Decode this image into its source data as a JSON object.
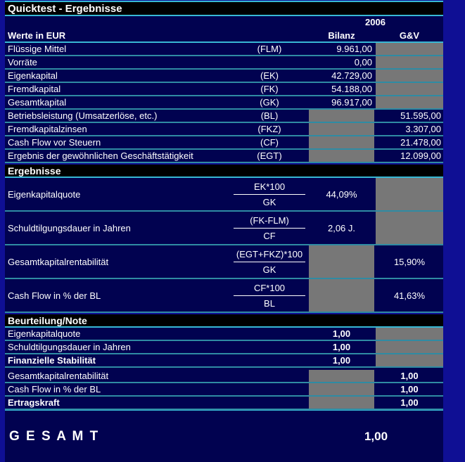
{
  "title": "Quicktest - Ergebnisse",
  "header": {
    "year": "2006",
    "unit_label": "Werte in EUR",
    "col_bilanz": "Bilanz",
    "col_guv": "G&V"
  },
  "values": {
    "rows": [
      {
        "label": "Flüssige Mittel",
        "code": "(FLM)",
        "bilanz": "9.961,00"
      },
      {
        "label": "Vorräte",
        "code": "",
        "bilanz": "0,00"
      },
      {
        "label": "Eigenkapital",
        "code": "(EK)",
        "bilanz": "42.729,00"
      },
      {
        "label": "Fremdkapital",
        "code": "(FK)",
        "bilanz": "54.188,00"
      },
      {
        "label": "Gesamtkapital",
        "code": "(GK)",
        "bilanz": "96.917,00"
      },
      {
        "label": "Betriebsleistung (Umsatzerlöse, etc.)",
        "code": "(BL)",
        "guv": "51.595,00"
      },
      {
        "label": "Fremdkapitalzinsen",
        "code": "(FKZ)",
        "guv": "3.307,00"
      },
      {
        "label": "Cash Flow vor Steuern",
        "code": "(CF)",
        "guv": "21.478,00"
      },
      {
        "label": "Ergebnis der gewöhnlichen Geschäftstätigkeit",
        "code": "(EGT)",
        "guv": "12.099,00"
      }
    ]
  },
  "results": {
    "section_title": "Ergebnisse",
    "rows": [
      {
        "label": "Eigenkapitalquote",
        "numerator": "EK*100",
        "denominator": "GK",
        "bilanz": "44,09%"
      },
      {
        "label": "Schuldtilgungsdauer in Jahren",
        "numerator": "(FK-FLM)",
        "denominator": "CF",
        "bilanz": "2,06 J."
      },
      {
        "label": "Gesamtkapitalrentabilität",
        "numerator": "(EGT+FKZ)*100",
        "denominator": "GK",
        "guv": "15,90%"
      },
      {
        "label": "Cash Flow in % der BL",
        "numerator": "CF*100",
        "denominator": "BL",
        "guv": "41,63%"
      }
    ]
  },
  "ratings": {
    "section_title": "Beurteilung/Note",
    "rows": [
      {
        "label": "Eigenkapitalquote",
        "bilanz": "1,00"
      },
      {
        "label": "Schuldtilgungsdauer in Jahren",
        "bilanz": "1,00"
      },
      {
        "label": "Finanzielle Stabilität",
        "bilanz": "1,00"
      },
      {
        "label": "Gesamtkapitalrentabilität",
        "guv": "1,00"
      },
      {
        "label": "Cash Flow in % der BL",
        "guv": "1,00"
      },
      {
        "label": "Ertragskraft",
        "guv": "1,00"
      }
    ]
  },
  "total": {
    "label": "G E S A M T",
    "value": "1,00"
  },
  "colors": {
    "outer_background": "#0f0f94",
    "table_background": "#010250",
    "section_bar": "#000000",
    "row_separator_teal": "#2f8ba3",
    "bright_line": "#38b8d4",
    "locked_cell_gray": "#777777",
    "text": "#ffffff"
  }
}
